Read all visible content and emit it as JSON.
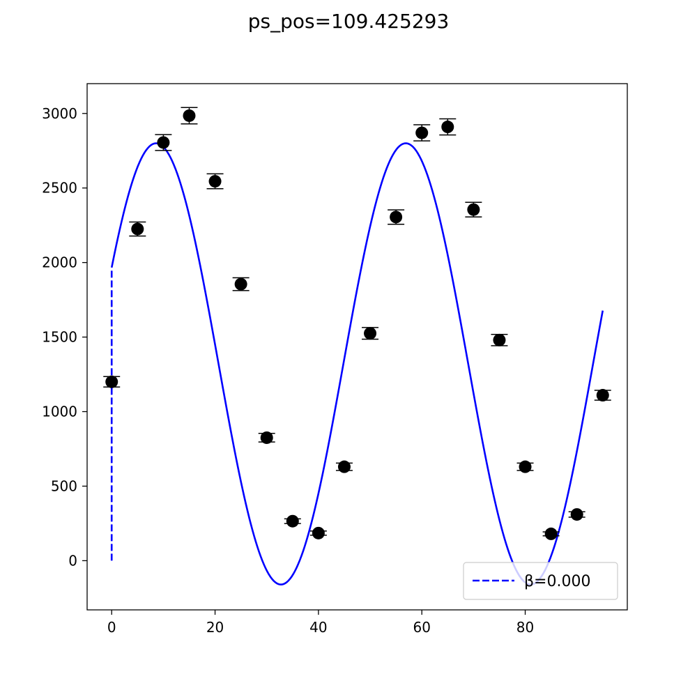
{
  "chart_data": {
    "type": "scatter",
    "title": "ps_pos=109.425293",
    "xlabel": "",
    "ylabel": "",
    "xlim": [
      -4.75,
      99.75
    ],
    "ylim": [
      -330,
      3200
    ],
    "x_ticks": [
      0,
      20,
      40,
      60,
      80
    ],
    "y_ticks": [
      0,
      500,
      1000,
      1500,
      2000,
      2500,
      3000
    ],
    "grid": false,
    "legend": {
      "placement": "lower right",
      "entries": [
        {
          "label": "β=0.000",
          "style": "dashed",
          "color": "#0000ff"
        }
      ]
    },
    "series": [
      {
        "kind": "errorbar",
        "color": "#000000",
        "x": [
          0,
          5,
          10,
          15,
          20,
          25,
          30,
          35,
          40,
          45,
          50,
          55,
          60,
          65,
          70,
          75,
          80,
          85,
          90,
          95
        ],
        "y": [
          1200,
          2225,
          2805,
          2985,
          2545,
          1855,
          825,
          265,
          185,
          630,
          1525,
          2305,
          2870,
          2910,
          2355,
          1480,
          630,
          180,
          310,
          1110
        ],
        "yerr": [
          35,
          47,
          53,
          55,
          50,
          43,
          29,
          16,
          14,
          25,
          39,
          48,
          54,
          54,
          49,
          38,
          25,
          13,
          18,
          33
        ]
      },
      {
        "kind": "fit-curve",
        "color": "#0000ff",
        "model": {
          "offset": 1320,
          "amplitude": 1480,
          "period": 48.3,
          "peak_x": 8.6
        },
        "x_range": [
          0,
          95
        ]
      },
      {
        "kind": "dashed-segment",
        "color": "#0000ff",
        "x": [
          0,
          0
        ],
        "y": [
          0,
          1960
        ]
      }
    ]
  }
}
